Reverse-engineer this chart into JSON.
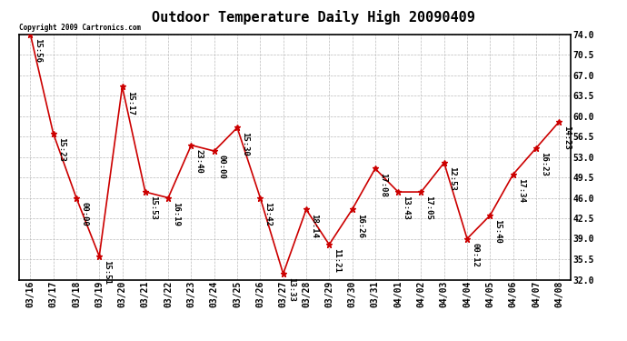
{
  "title": "Outdoor Temperature Daily High 20090409",
  "copyright_text": "Copyright 2009 Cartronics.com",
  "x_labels": [
    "03/16",
    "03/17",
    "03/18",
    "03/19",
    "03/20",
    "03/21",
    "03/22",
    "03/23",
    "03/24",
    "03/25",
    "03/26",
    "03/27",
    "03/28",
    "03/29",
    "03/30",
    "03/31",
    "04/01",
    "04/02",
    "04/03",
    "04/04",
    "04/05",
    "04/06",
    "04/07",
    "04/08"
  ],
  "y_values": [
    74.0,
    57.0,
    46.0,
    36.0,
    65.0,
    47.0,
    46.0,
    55.0,
    54.0,
    58.0,
    46.0,
    33.0,
    44.0,
    38.0,
    44.0,
    51.0,
    47.0,
    47.0,
    52.0,
    39.0,
    43.0,
    50.0,
    54.5,
    59.0
  ],
  "point_labels": [
    "15:56",
    "15:23",
    "00:00",
    "15:51",
    "15:17",
    "15:53",
    "16:19",
    "23:40",
    "00:00",
    "15:30",
    "13:42",
    "13:33",
    "18:14",
    "11:21",
    "16:26",
    "17:08",
    "13:43",
    "17:05",
    "12:53",
    "00:12",
    "15:40",
    "17:34",
    "16:23",
    "14:23"
  ],
  "ylim_min": 32.0,
  "ylim_max": 74.0,
  "yticks": [
    32.0,
    35.5,
    39.0,
    42.5,
    46.0,
    49.5,
    53.0,
    56.5,
    60.0,
    63.5,
    67.0,
    70.5,
    74.0
  ],
  "line_color": "#cc0000",
  "marker_color": "#cc0000",
  "bg_color": "#ffffff",
  "grid_color": "#bbbbbb",
  "title_fontsize": 11,
  "tick_fontsize": 7,
  "annotation_fontsize": 6.5
}
